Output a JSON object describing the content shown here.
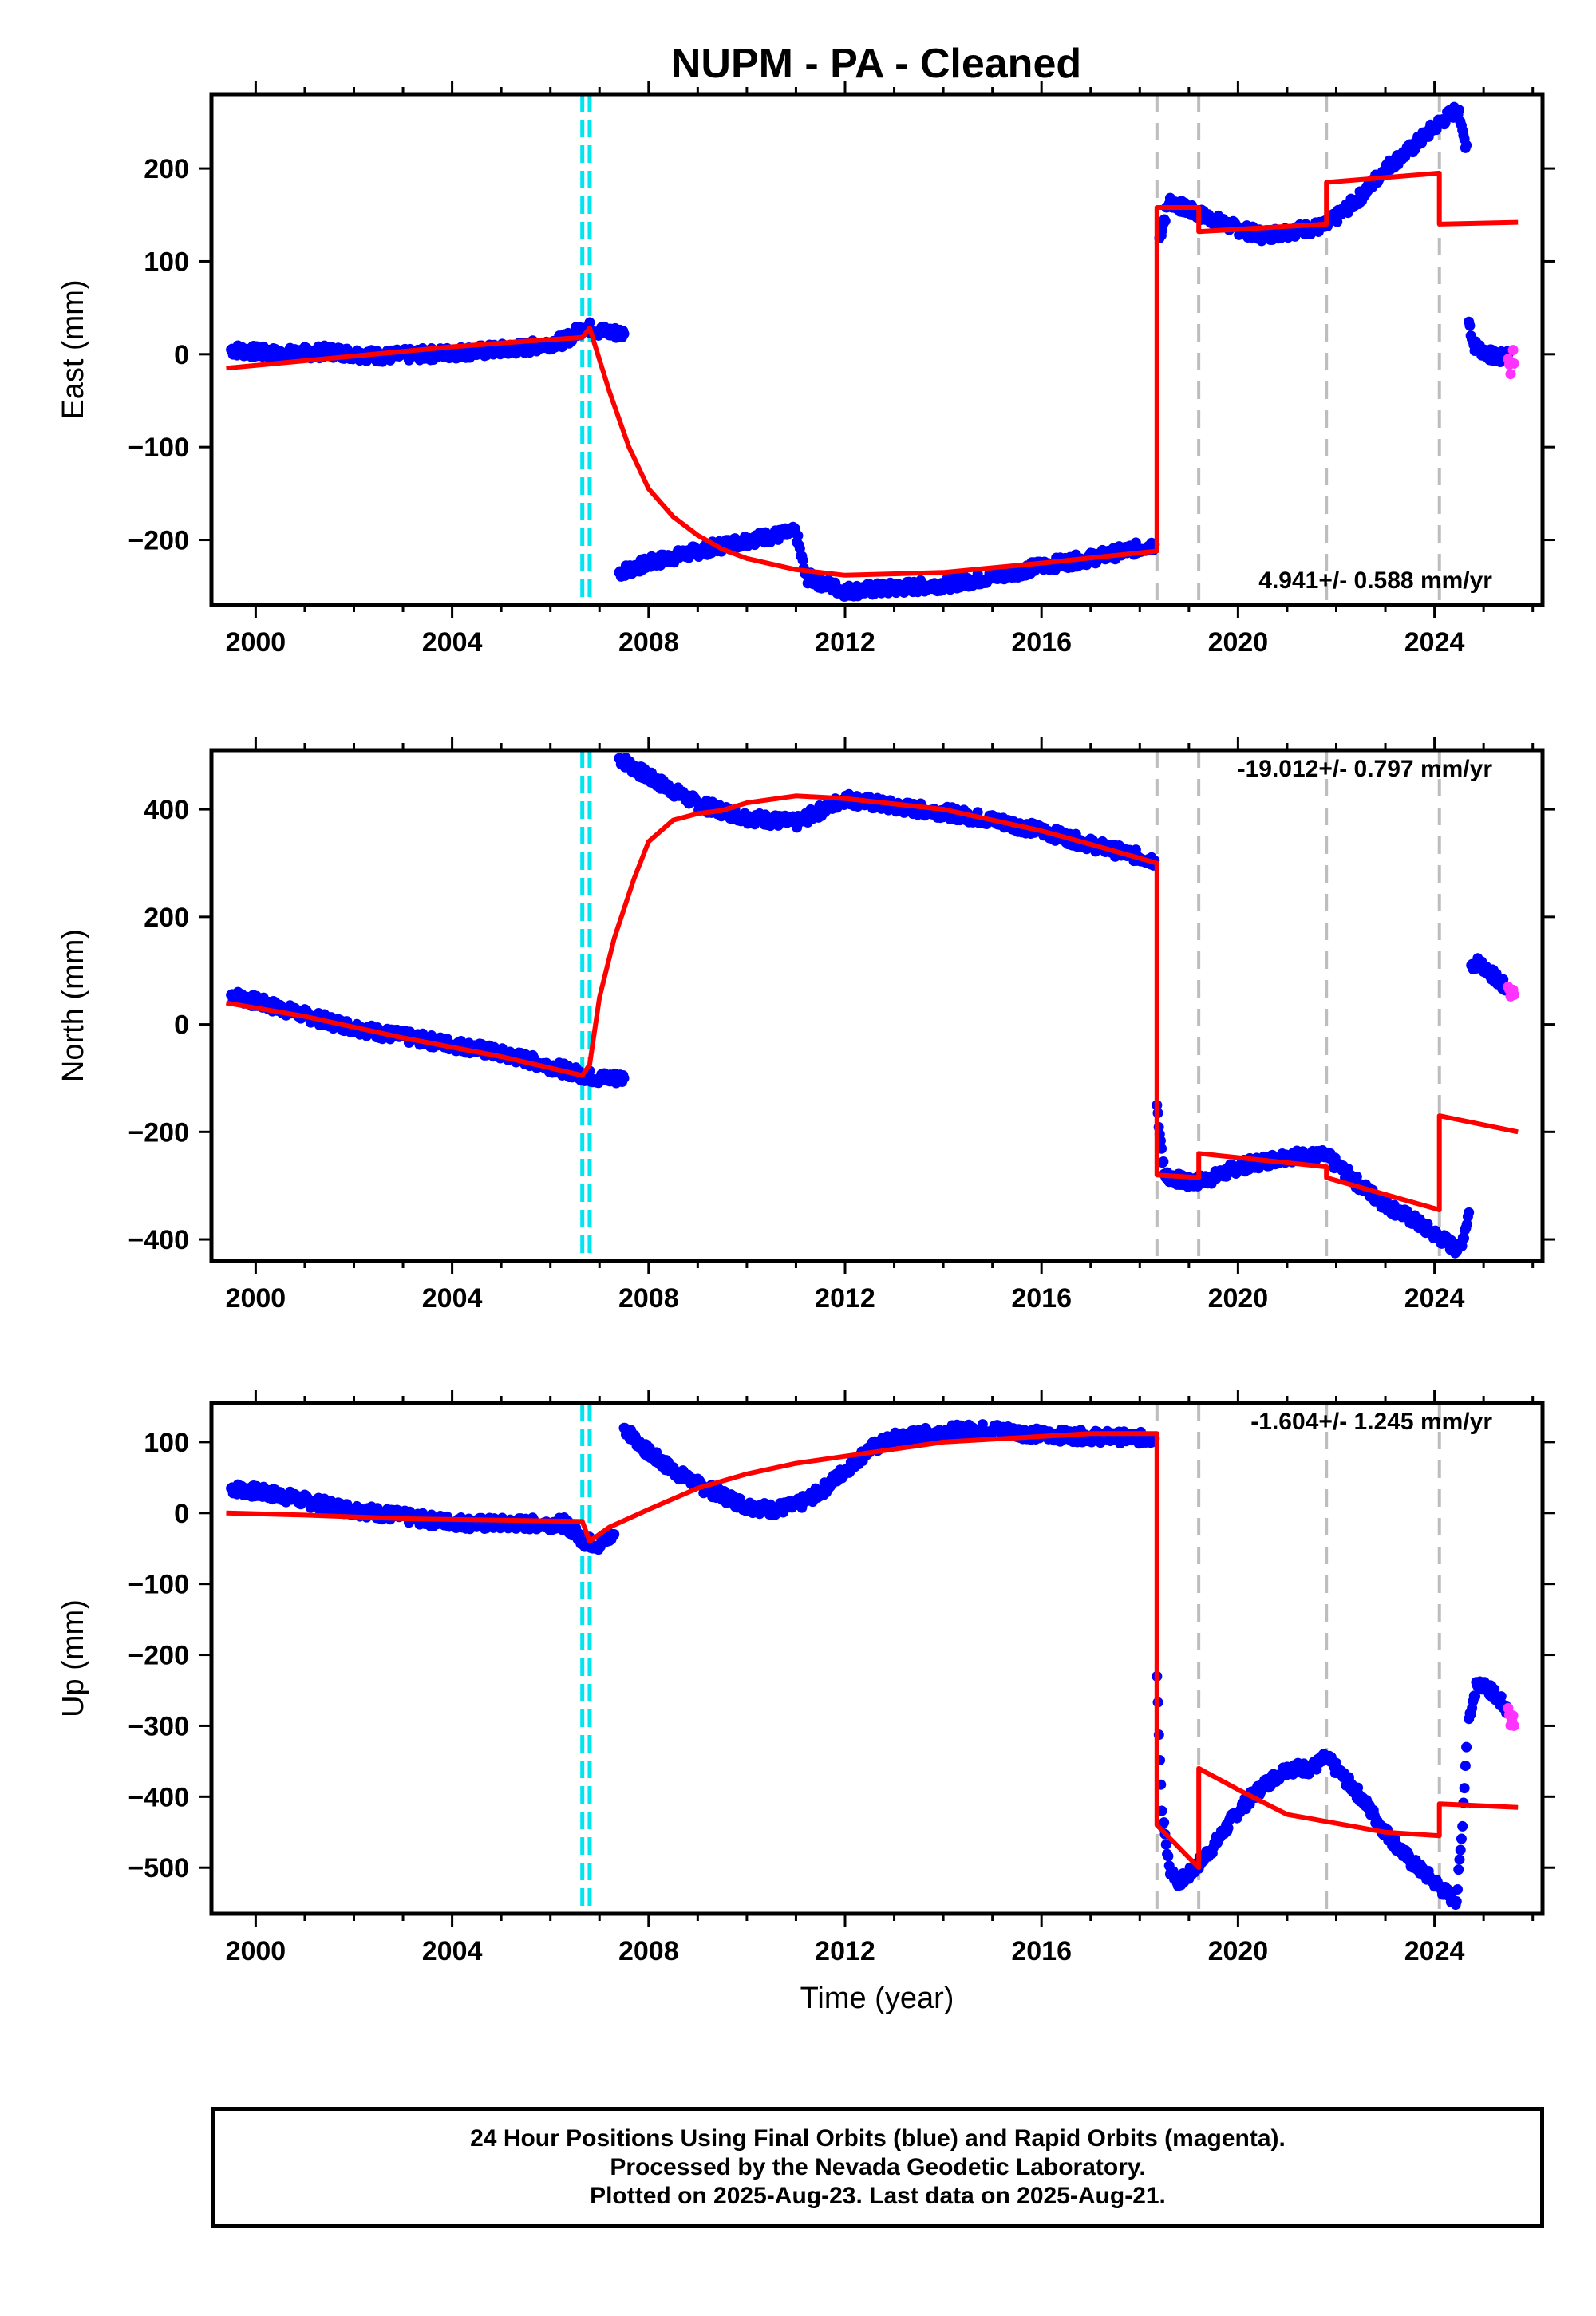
{
  "title": "NUPM  - PA - Cleaned",
  "colors": {
    "final": "#0000ff",
    "rapid": "#ff33ff",
    "model": "#ff0000",
    "cyan_line": "#00e5ee",
    "grey_line": "#bdbdbd"
  },
  "footer": {
    "line1": "24 Hour Positions Using Final Orbits (blue) and Rapid Orbits (magenta).",
    "line2": "Processed by the Nevada Geodetic Laboratory.",
    "line3": "Plotted on 2025-Aug-23. Last data on 2025-Aug-21."
  },
  "chart_data": [
    {
      "type": "scatter",
      "component": "east",
      "ylabel": "East (mm)",
      "xlabel": "",
      "xlim": [
        1999.1,
        2026.2
      ],
      "ylim": [
        -270,
        280
      ],
      "xticks": [
        "2000",
        "2004",
        "2008",
        "2012",
        "2016",
        "2020",
        "2024"
      ],
      "yticks": [
        "200",
        "100",
        "0",
        "−100",
        "−200"
      ],
      "ytick_values": [
        200,
        100,
        0,
        -100,
        -200
      ],
      "rate_label": "4.941+/- 0.588 mm/yr",
      "vlines_cyan": [
        2006.65,
        2006.8
      ],
      "vlines_grey": [
        2018.35,
        2019.2,
        2021.8,
        2024.1
      ],
      "series": [
        {
          "kind": "final",
          "x": [
            1999.5,
            2000.5,
            2001.5,
            2002.5,
            2003.5,
            2004.5,
            2005.5,
            2006.3,
            2006.7,
            2007.0,
            2007.5
          ],
          "y": [
            5,
            0,
            3,
            -2,
            0,
            3,
            7,
            15,
            30,
            25,
            22
          ]
        },
        {
          "kind": "final",
          "x": [
            2007.4,
            2008.0,
            2009.0,
            2010.0,
            2011.0,
            2011.2,
            2012.0,
            2013.0,
            2014.0,
            2015.0,
            2016.0,
            2017.0,
            2018.3
          ],
          "y": [
            -235,
            -225,
            -212,
            -200,
            -192,
            -240,
            -255,
            -252,
            -248,
            -240,
            -228,
            -220,
            -205
          ]
        },
        {
          "kind": "final",
          "x": [
            2018.4,
            2018.6,
            2019.0,
            2019.5,
            2020.0,
            2020.5,
            2021.0,
            2021.8,
            2022.5,
            2023.0,
            2023.5,
            2024.0,
            2024.5,
            2024.55,
            2024.65
          ],
          "y": [
            125,
            165,
            155,
            145,
            135,
            128,
            132,
            138,
            170,
            200,
            220,
            245,
            265,
            240,
            225
          ]
        },
        {
          "kind": "final",
          "x": [
            2024.7,
            2024.8,
            2025.0,
            2025.3,
            2025.5
          ],
          "y": [
            35,
            10,
            3,
            -5,
            0
          ]
        },
        {
          "kind": "rapid",
          "x": [
            2025.5,
            2025.55,
            2025.6,
            2025.62
          ],
          "y": [
            -5,
            -18,
            5,
            -10
          ]
        }
      ],
      "model": {
        "x": [
          1999.4,
          2002.0,
          2004.0,
          2005.5,
          2006.65,
          2006.8,
          2007.2,
          2007.6,
          2008.0,
          2008.5,
          2009.0,
          2009.5,
          2010.0,
          2011.0,
          2012.0,
          2014.0,
          2016.0,
          2018.35,
          2018.35,
          2019.2,
          2019.2,
          2021.8,
          2021.8,
          2024.1,
          2024.1,
          2025.7
        ],
        "y": [
          -15,
          -2,
          8,
          14,
          18,
          28,
          -40,
          -100,
          -145,
          -175,
          -195,
          -210,
          -220,
          -232,
          -238,
          -235,
          -225,
          -212,
          158,
          158,
          132,
          140,
          185,
          195,
          140,
          142
        ]
      }
    },
    {
      "type": "scatter",
      "component": "north",
      "ylabel": "North (mm)",
      "xlabel": "",
      "xlim": [
        1999.1,
        2026.2
      ],
      "ylim": [
        -440,
        510
      ],
      "xticks": [
        "2000",
        "2004",
        "2008",
        "2012",
        "2016",
        "2020",
        "2024"
      ],
      "yticks": [
        "400",
        "200",
        "0",
        "−200",
        "−400"
      ],
      "ytick_values": [
        400,
        200,
        0,
        -200,
        -400
      ],
      "rate_label": "-19.012+/- 0.797 mm/yr",
      "vlines_cyan": [
        2006.65,
        2006.8
      ],
      "vlines_grey": [
        2018.35,
        2019.2,
        2021.8,
        2024.1
      ],
      "series": [
        {
          "kind": "final",
          "x": [
            1999.5,
            2000.5,
            2001.5,
            2002.5,
            2003.5,
            2004.5,
            2005.5,
            2006.3,
            2006.7,
            2007.0,
            2007.5
          ],
          "y": [
            55,
            30,
            5,
            -15,
            -30,
            -45,
            -65,
            -85,
            -95,
            -100,
            -100
          ]
        },
        {
          "kind": "final",
          "x": [
            2007.4,
            2008.0,
            2009.0,
            2010.0,
            2011.0,
            2012.0,
            2013.0,
            2014.0,
            2015.0,
            2016.0,
            2017.0,
            2018.3
          ],
          "y": [
            495,
            460,
            410,
            385,
            375,
            420,
            405,
            395,
            380,
            360,
            335,
            305
          ]
        },
        {
          "kind": "final",
          "x": [
            2018.35,
            2018.5,
            2019.0,
            2019.5,
            2020.0,
            2021.0,
            2021.8,
            2022.5,
            2023.0,
            2023.5,
            2024.0,
            2024.5,
            2024.6,
            2024.7
          ],
          "y": [
            -150,
            -280,
            -295,
            -285,
            -265,
            -245,
            -245,
            -300,
            -335,
            -360,
            -390,
            -420,
            -390,
            -350
          ]
        },
        {
          "kind": "final",
          "x": [
            2024.75,
            2024.9,
            2025.1,
            2025.3,
            2025.5
          ],
          "y": [
            110,
            115,
            100,
            80,
            65
          ]
        },
        {
          "kind": "rapid",
          "x": [
            2025.5,
            2025.55,
            2025.6,
            2025.62
          ],
          "y": [
            70,
            58,
            65,
            55
          ]
        }
      ],
      "model": {
        "x": [
          1999.4,
          2001.0,
          2003.0,
          2005.0,
          2006.65,
          2006.8,
          2007.0,
          2007.3,
          2007.7,
          2008.0,
          2008.5,
          2009.0,
          2009.5,
          2010.0,
          2011.0,
          2012.0,
          2014.0,
          2016.0,
          2017.0,
          2018.35,
          2018.35,
          2019.2,
          2019.2,
          2021.8,
          2021.8,
          2024.1,
          2024.1,
          2025.7
        ],
        "y": [
          40,
          15,
          -25,
          -60,
          -95,
          -75,
          50,
          160,
          270,
          340,
          380,
          392,
          398,
          412,
          425,
          420,
          400,
          360,
          335,
          300,
          -280,
          -285,
          -240,
          -265,
          -285,
          -345,
          -170,
          -200
        ]
      }
    },
    {
      "type": "scatter",
      "component": "up",
      "ylabel": "Up (mm)",
      "xlabel": "Time (year)",
      "xlim": [
        1999.1,
        2026.2
      ],
      "ylim": [
        -565,
        155
      ],
      "xticks": [
        "2000",
        "2004",
        "2008",
        "2012",
        "2016",
        "2020",
        "2024"
      ],
      "yticks": [
        "100",
        "0",
        "−100",
        "−200",
        "−300",
        "−400",
        "−500"
      ],
      "ytick_values": [
        100,
        0,
        -100,
        -200,
        -300,
        -400,
        -500
      ],
      "rate_label": "-1.604+/- 1.245 mm/yr",
      "vlines_cyan": [
        2006.65,
        2006.8
      ],
      "vlines_grey": [
        2018.35,
        2019.2,
        2021.8,
        2024.1
      ],
      "series": [
        {
          "kind": "final",
          "x": [
            1999.5,
            2000.5,
            2001.5,
            2002.5,
            2003.5,
            2004.5,
            2005.5,
            2006.3,
            2006.7,
            2007.0,
            2007.3
          ],
          "y": [
            35,
            25,
            10,
            0,
            -10,
            -15,
            -15,
            -15,
            -40,
            -45,
            -30
          ]
        },
        {
          "kind": "final",
          "x": [
            2007.5,
            2008.0,
            2008.5,
            2009.0,
            2009.5,
            2010.0,
            2010.5,
            2011.0,
            2011.5,
            2012.0,
            2012.5,
            2013.0,
            2014.0,
            2015.0,
            2016.0,
            2017.0,
            2018.3
          ],
          "y": [
            120,
            85,
            60,
            40,
            25,
            10,
            5,
            10,
            30,
            60,
            90,
            105,
            115,
            118,
            110,
            108,
            105
          ]
        },
        {
          "kind": "final",
          "x": [
            2018.35,
            2018.45,
            2018.6,
            2018.8,
            2019.0,
            2019.5,
            2020.0,
            2020.5,
            2021.0,
            2021.5,
            2021.8,
            2022.5,
            2023.0,
            2023.5,
            2024.0,
            2024.3,
            2024.45,
            2024.55,
            2024.65
          ],
          "y": [
            -230,
            -420,
            -500,
            -520,
            -510,
            -470,
            -420,
            -385,
            -360,
            -360,
            -345,
            -400,
            -450,
            -490,
            -520,
            -540,
            -545,
            -460,
            -330
          ]
        },
        {
          "kind": "final",
          "x": [
            2024.7,
            2024.85,
            2025.0,
            2025.2,
            2025.4,
            2025.5
          ],
          "y": [
            -290,
            -245,
            -240,
            -255,
            -270,
            -280
          ]
        },
        {
          "kind": "rapid",
          "x": [
            2025.5,
            2025.55,
            2025.6,
            2025.62
          ],
          "y": [
            -275,
            -295,
            -285,
            -300
          ]
        }
      ],
      "model": {
        "x": [
          1999.4,
          2001.0,
          2003.0,
          2005.0,
          2006.65,
          2006.8,
          2007.2,
          2008.0,
          2009.0,
          2010.0,
          2011.0,
          2012.0,
          2013.0,
          2014.0,
          2016.0,
          2017.0,
          2018.35,
          2018.35,
          2019.2,
          2019.2,
          2020.0,
          2021.0,
          2021.8,
          2023.0,
          2024.1,
          2024.1,
          2025.7
        ],
        "y": [
          0,
          -3,
          -8,
          -10,
          -12,
          -40,
          -20,
          5,
          35,
          55,
          70,
          80,
          90,
          100,
          108,
          112,
          112,
          -440,
          -500,
          -360,
          -390,
          -425,
          -435,
          -450,
          -455,
          -410,
          -415
        ]
      }
    }
  ]
}
